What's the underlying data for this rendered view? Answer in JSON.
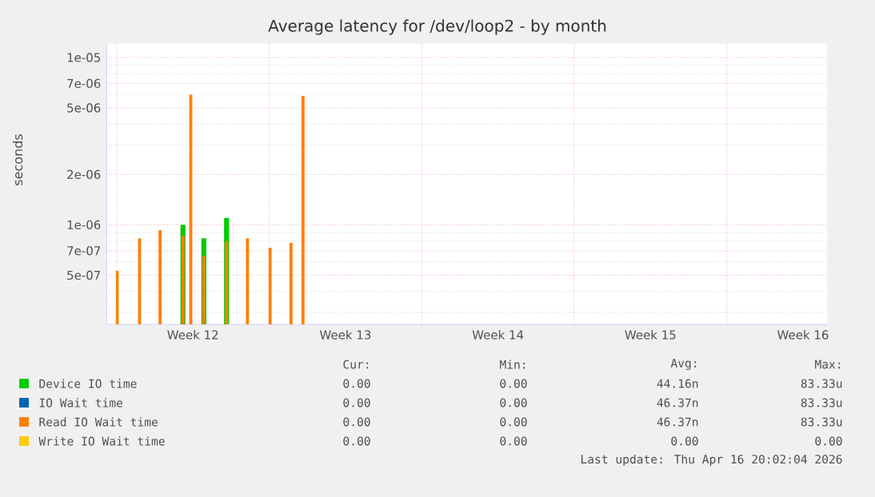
{
  "chart_data": {
    "type": "bar",
    "title": "Average latency for /dev/loop2 - by month",
    "ylabel": "seconds",
    "log": true,
    "grid": true,
    "legend": "bottom",
    "x": [
      "2026-03-16T00:30",
      "2026-03-17T01:10",
      "2026-03-17T23:45",
      "2026-03-19T01:00",
      "2026-03-19T09:35",
      "2026-03-20T00:00",
      "2026-03-21T01:00",
      "2026-03-22T00:00",
      "2026-03-23T01:00",
      "2026-03-24T00:00",
      "2026-03-24T13:12"
    ],
    "xlim": [
      "2026-03-15T13:00",
      "2026-04-17T14:24"
    ],
    "xticks": [
      {
        "value": "2026-03-19T12:00",
        "label": "Week 12"
      },
      {
        "value": "2026-03-26T12:00",
        "label": "Week 13"
      },
      {
        "value": "2026-04-02T12:00",
        "label": "Week 14"
      },
      {
        "value": "2026-04-09T12:00",
        "label": "Week 15"
      },
      {
        "value": "2026-04-16T12:00",
        "label": "Week 16"
      },
      {
        "value": "2026-03-16",
        "label": null
      },
      {
        "value": "2026-03-23",
        "label": null
      },
      {
        "value": "2026-03-30",
        "label": null
      },
      {
        "value": "2026-04-06",
        "label": null
      },
      {
        "value": "2026-04-13",
        "label": null
      }
    ],
    "ylim": [
      2.54e-07,
      1.21e-05
    ],
    "yticks": [
      {
        "value": 1e-05,
        "label": "1e-05"
      },
      {
        "value": 7e-06,
        "label": "7e-06"
      },
      {
        "value": 5e-06,
        "label": "5e-06"
      },
      {
        "value": 2e-06,
        "label": "2e-06"
      },
      {
        "value": 1e-06,
        "label": "1e-06"
      },
      {
        "value": 7e-07,
        "label": "7e-07"
      },
      {
        "value": 5e-07,
        "label": "5e-07"
      },
      {
        "value": 9e-06,
        "label": null
      },
      {
        "value": 8e-06,
        "label": null
      },
      {
        "value": 6e-06,
        "label": null
      },
      {
        "value": 4e-06,
        "label": null
      },
      {
        "value": 3e-06,
        "label": null
      },
      {
        "value": 9e-07,
        "label": null
      },
      {
        "value": 8e-07,
        "label": null
      },
      {
        "value": 6e-07,
        "label": null
      },
      {
        "value": 4e-07,
        "label": null
      },
      {
        "value": 3e-07,
        "label": null
      }
    ],
    "series": [
      {
        "name": "Device IO time",
        "color": "#00cc00",
        "values": [
          null,
          null,
          null,
          1e-06,
          null,
          8.3e-07,
          1.1e-06,
          null,
          null,
          null,
          null
        ]
      },
      {
        "name": "IO Wait time",
        "color": "#0066b3",
        "values": [
          null,
          null,
          null,
          null,
          null,
          null,
          null,
          null,
          null,
          null,
          null
        ]
      },
      {
        "name": "Read IO Wait time",
        "color": "#ff8000",
        "values": [
          5.3e-07,
          8.3e-07,
          9.3e-07,
          8.6e-07,
          6e-06,
          6.5e-07,
          8e-07,
          8.3e-07,
          7.3e-07,
          7.8e-07,
          5.9e-06
        ]
      },
      {
        "name": "Write IO Wait time",
        "color": "#ffcc00",
        "values": [
          null,
          null,
          null,
          null,
          null,
          null,
          null,
          null,
          null,
          null,
          null
        ]
      }
    ],
    "annotations": [
      "Cur:",
      "Min:",
      "Avg:",
      "Max:",
      "0.00",
      "0.00",
      "44.16n",
      "83.33u",
      "0.00",
      "0.00",
      "46.37n",
      "83.33u",
      "0.00",
      "0.00",
      "46.37n",
      "83.33u",
      "0.00",
      "0.00",
      "0.00",
      "0.00",
      "Last update: Thu Apr 16 20:02:04 2026"
    ]
  }
}
